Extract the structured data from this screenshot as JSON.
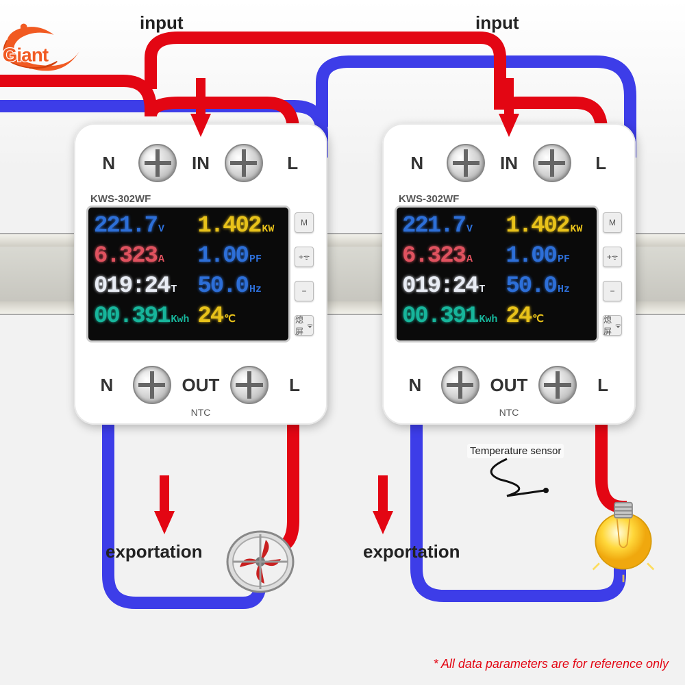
{
  "logo_text": "Giant",
  "labels": {
    "input": "input",
    "exportation": "exportation",
    "temp_sensor": "Temperature sensor",
    "disclaimer": "* All data parameters are for reference only"
  },
  "module": {
    "model": "KWS-302WF",
    "terminals": {
      "N": "N",
      "L": "L",
      "IN": "IN",
      "OUT": "OUT",
      "NTC": "NTC"
    },
    "buttons": [
      "M",
      "+",
      "−",
      "熄屏"
    ],
    "display": {
      "voltage": {
        "val": "221.7",
        "unit": "V",
        "color": "#2d6fd8"
      },
      "power": {
        "val": "1.402",
        "unit": "KW",
        "color": "#e8c21a"
      },
      "current": {
        "val": "6.323",
        "unit": "A",
        "color": "#e0525f"
      },
      "pf": {
        "val": "1.00",
        "unit": "PF",
        "color": "#2d6fd8"
      },
      "time": {
        "val": "019:24",
        "unit": "T",
        "color": "#e8ecf4"
      },
      "freq": {
        "val": "50.0",
        "unit": "Hz",
        "color": "#2d6fd8"
      },
      "energy": {
        "val": "00.391",
        "unit": "Kwh",
        "color": "#17b59b"
      },
      "temp": {
        "val": "24",
        "unit": "℃",
        "color": "#e8c21a"
      }
    }
  },
  "colors": {
    "wire_neutral": "#3d3de8",
    "wire_live": "#e30613",
    "arrow": "#e30613",
    "logo_orange": "#f15a22",
    "logo_deep": "#d13f0b"
  }
}
